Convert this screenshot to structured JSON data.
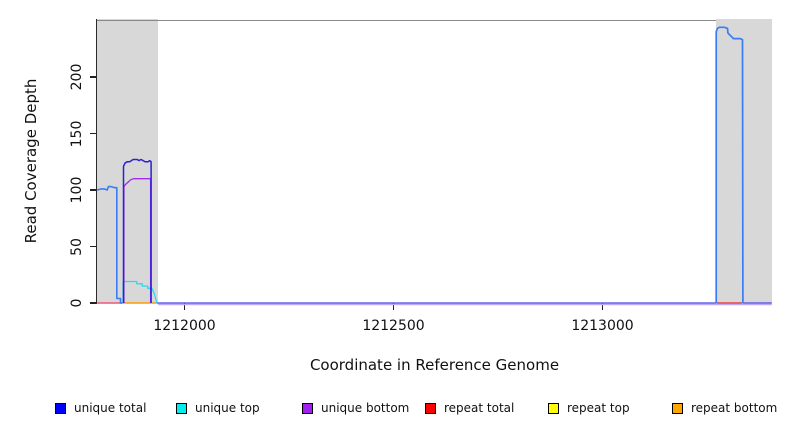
{
  "axes": {
    "x_title": "Coordinate in Reference Genome",
    "y_title": "Read Coverage Depth",
    "x_ticks": [
      {
        "value": 1212000,
        "label": "1212000"
      },
      {
        "value": 1212500,
        "label": "1212500"
      },
      {
        "value": 1213000,
        "label": "1213000"
      }
    ],
    "y_ticks": [
      {
        "value": 0,
        "label": "0"
      },
      {
        "value": 50,
        "label": "50"
      },
      {
        "value": 100,
        "label": "100"
      },
      {
        "value": 150,
        "label": "150"
      },
      {
        "value": 200,
        "label": "200"
      }
    ]
  },
  "legend": {
    "items": [
      {
        "label": "unique total",
        "color": "#0000FF"
      },
      {
        "label": "unique top",
        "color": "#00EEEE"
      },
      {
        "label": "unique bottom",
        "color": "#A020F0"
      },
      {
        "label": "repeat total",
        "color": "#FF0000"
      },
      {
        "label": "repeat top",
        "color": "#FFFF00"
      },
      {
        "label": "repeat bottom",
        "color": "#FFA500"
      }
    ]
  },
  "chart_data": {
    "type": "line",
    "title": "",
    "xlabel": "Coordinate in Reference Genome",
    "ylabel": "Read Coverage Depth",
    "xlim": [
      1211790,
      1213405
    ],
    "ylim": [
      0,
      250
    ],
    "x_tick_values": [
      1212000,
      1212500,
      1213000
    ],
    "y_tick_values": [
      0,
      50,
      100,
      150,
      200
    ],
    "grid": false,
    "legend_position": "bottom",
    "shaded_regions": [
      {
        "name": "repeat-region-left",
        "x_range": [
          1211791,
          1211937
        ],
        "color": "#d8d8d8"
      },
      {
        "name": "repeat-region-right",
        "x_range": [
          1213272,
          1213405
        ],
        "color": "#d8d8d8"
      }
    ],
    "series_legend": [
      {
        "name": "unique total",
        "color": "#0000FF"
      },
      {
        "name": "unique top",
        "color": "#00EEEE"
      },
      {
        "name": "unique bottom",
        "color": "#A020F0"
      },
      {
        "name": "repeat total",
        "color": "#FF0000"
      },
      {
        "name": "repeat top",
        "color": "#FFFF00"
      },
      {
        "name": "repeat bottom",
        "color": "#FFA500"
      }
    ],
    "lines": [
      {
        "name": "baseline-underglow",
        "series": "unique bottom",
        "color": "#bcaaf6",
        "width": 1.4,
        "dy": 1.5,
        "points": [
          [
            1211937,
            0
          ],
          [
            1213405,
            0
          ]
        ]
      },
      {
        "name": "baseline-left-of-right-peak",
        "series": "unique total",
        "color": "#4a47e2",
        "width": 1.3,
        "points": [
          [
            1211934,
            0
          ],
          [
            1213272,
            0
          ]
        ]
      },
      {
        "name": "baseline-right-of-right-peak",
        "series": "unique total",
        "color": "#4a47e2",
        "width": 1.3,
        "points": [
          [
            1213336,
            0
          ],
          [
            1213405,
            0
          ]
        ]
      },
      {
        "name": "repeat-total-left-segment",
        "series": "repeat total",
        "color": "#f0557a",
        "width": 1.4,
        "points": [
          [
            1211791,
            0
          ],
          [
            1211852,
            0
          ]
        ]
      },
      {
        "name": "repeat-bottom-left-segment",
        "series": "repeat bottom",
        "color": "#ff9b06",
        "width": 1.6,
        "points": [
          [
            1211852,
            0
          ],
          [
            1211935,
            0
          ]
        ]
      },
      {
        "name": "repeat-total-right-segment",
        "series": "repeat total",
        "color": "#e93f3f",
        "width": 1.4,
        "points": [
          [
            1213273,
            0
          ],
          [
            1213335,
            0
          ]
        ]
      },
      {
        "name": "unique-top-peak-b",
        "series": "unique top",
        "color": "#2bd8ec",
        "width": 1.3,
        "points": [
          [
            1211853,
            0
          ],
          [
            1211853,
            19
          ],
          [
            1211886,
            19
          ],
          [
            1211886,
            17
          ],
          [
            1211899,
            17
          ],
          [
            1211899,
            15
          ],
          [
            1211912,
            15
          ],
          [
            1211912,
            13
          ],
          [
            1211922,
            13
          ],
          [
            1211927,
            9
          ],
          [
            1211931,
            4
          ],
          [
            1211934,
            0
          ]
        ]
      },
      {
        "name": "unique-bottom-peak-b",
        "series": "unique bottom",
        "color": "#a12cec",
        "width": 1.3,
        "points": [
          [
            1211855,
            0
          ],
          [
            1211855,
            103
          ],
          [
            1211859,
            105
          ],
          [
            1211865,
            107
          ],
          [
            1211871,
            109
          ],
          [
            1211878,
            110
          ],
          [
            1211919,
            110
          ],
          [
            1211919,
            0
          ]
        ]
      },
      {
        "name": "unique-total-peak-b",
        "series": "unique total",
        "color": "#2a22d0",
        "width": 1.5,
        "points": [
          [
            1211854,
            0
          ],
          [
            1211854,
            121
          ],
          [
            1211858,
            124
          ],
          [
            1211863,
            125
          ],
          [
            1211869,
            125
          ],
          [
            1211873,
            126
          ],
          [
            1211877,
            127
          ],
          [
            1211887,
            127
          ],
          [
            1211891,
            126
          ],
          [
            1211896,
            127
          ],
          [
            1211901,
            126
          ],
          [
            1211906,
            125
          ],
          [
            1211913,
            125
          ],
          [
            1211917,
            126
          ],
          [
            1211920,
            125
          ],
          [
            1211920,
            0
          ]
        ]
      },
      {
        "name": "unique-total-top-overlap-peak-a",
        "series": "unique total + unique top",
        "color": "#3a7cf4",
        "width": 1.6,
        "points": [
          [
            1211791,
            100
          ],
          [
            1211801,
            101
          ],
          [
            1211808,
            101
          ],
          [
            1211815,
            100
          ],
          [
            1211818,
            103
          ],
          [
            1211824,
            103
          ],
          [
            1211833,
            102
          ],
          [
            1211838,
            102
          ],
          [
            1211838,
            4
          ],
          [
            1211847,
            4
          ],
          [
            1211847,
            0
          ],
          [
            1211851,
            0
          ]
        ]
      },
      {
        "name": "unique-total-top-overlap-right-peak",
        "series": "unique total + unique top",
        "color": "#3a7cf4",
        "width": 1.7,
        "points": [
          [
            1213272,
            0
          ],
          [
            1213272,
            240
          ],
          [
            1213275,
            243
          ],
          [
            1213280,
            244
          ],
          [
            1213292,
            244
          ],
          [
            1213299,
            243
          ],
          [
            1213300,
            239
          ],
          [
            1213305,
            237
          ],
          [
            1213311,
            235
          ],
          [
            1213313,
            234
          ],
          [
            1213330,
            234
          ],
          [
            1213335,
            233
          ],
          [
            1213336,
            0
          ]
        ]
      }
    ]
  }
}
